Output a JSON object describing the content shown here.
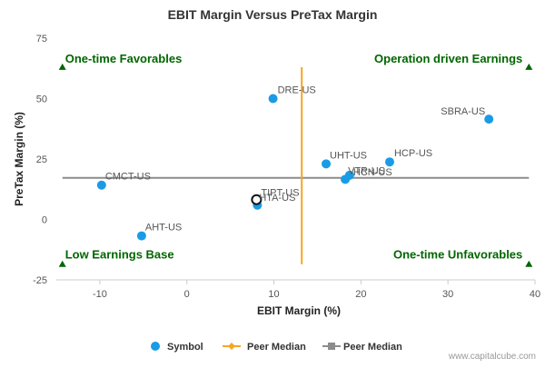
{
  "chart_data": {
    "type": "scatter",
    "title": "EBIT Margin Versus PreTax Margin",
    "xlabel": "EBIT Margin (%)",
    "ylabel": "PreTax Margin (%)",
    "xlim": [
      -15,
      40
    ],
    "ylim": [
      -25,
      75
    ],
    "x_ticks": [
      -10,
      0,
      10,
      20,
      30,
      40
    ],
    "y_ticks": [
      -25,
      0,
      25,
      50,
      75
    ],
    "x_tick_labels": [
      "-10",
      "0",
      "10",
      "20",
      "30",
      "40"
    ],
    "y_tick_labels": [
      "-25",
      "0",
      "25",
      "50",
      "75"
    ],
    "grid": false,
    "series": [
      {
        "name": "Symbol",
        "color": "#1a9be6",
        "points": [
          {
            "label": "DRE-US",
            "x": 9.9,
            "y": 50.0
          },
          {
            "label": "SBRA-US",
            "x": 34.7,
            "y": 41.5
          },
          {
            "label": "HCP-US",
            "x": 23.3,
            "y": 23.8
          },
          {
            "label": "UHT-US",
            "x": 16.0,
            "y": 23.0
          },
          {
            "label": "HCN-US",
            "x": 18.7,
            "y": 18.3
          },
          {
            "label": "VTR-US",
            "x": 18.2,
            "y": 16.6
          },
          {
            "label": "CMCT-US",
            "x": -9.8,
            "y": 14.2
          },
          {
            "label": "HTA-US",
            "x": 8.1,
            "y": 5.9
          },
          {
            "label": "AHT-US",
            "x": -5.2,
            "y": -6.8
          }
        ]
      }
    ],
    "highlight_point": {
      "label": "TIPT-US",
      "x": 8.0,
      "y": 8.2,
      "color": "#111111"
    },
    "peer_median_x": {
      "name": "Peer Median",
      "value": 13.2,
      "color": "#f5a623"
    },
    "peer_median_y": {
      "name": "Peer Median",
      "value": 17.2,
      "color": "#8c8c8c"
    },
    "quadrants": {
      "top_left": "One-time Favorables",
      "top_right": "Operation driven Earnings",
      "bottom_left": "Low Earnings Base",
      "bottom_right": "One-time Unfavorables"
    },
    "legend": {
      "placement": "bottom",
      "items": [
        "Symbol",
        "Peer Median",
        "Peer Median"
      ]
    },
    "credit": "www.capitalcube.com"
  }
}
